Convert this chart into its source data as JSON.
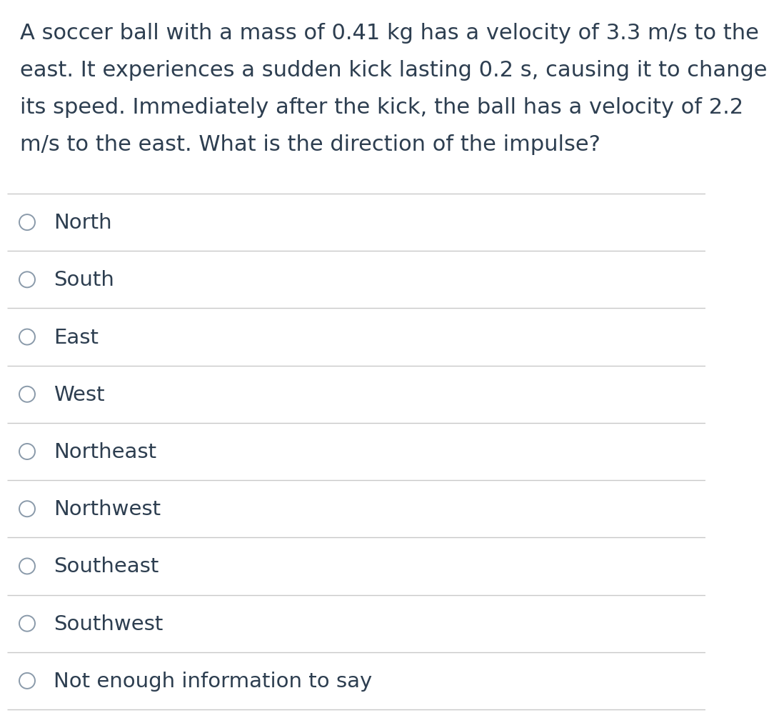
{
  "question_lines": [
    "A soccer ball with a mass of 0.41 kg has a velocity of 3.3 m/s to the",
    "east. It experiences a sudden kick lasting 0.2 s, causing it to change",
    "its speed. Immediately after the kick, the ball has a velocity of 2.2",
    "m/s to the east. What is the direction of the impulse?"
  ],
  "options": [
    "North",
    "South",
    "East",
    "West",
    "Northeast",
    "Northwest",
    "Southeast",
    "Southwest",
    "Not enough information to say"
  ],
  "background_color": "#ffffff",
  "text_color": "#2d3e50",
  "line_color": "#c8c8c8",
  "question_fontsize": 22,
  "option_fontsize": 21,
  "circle_color": "#ffffff",
  "circle_edge_color": "#8a9aaa"
}
